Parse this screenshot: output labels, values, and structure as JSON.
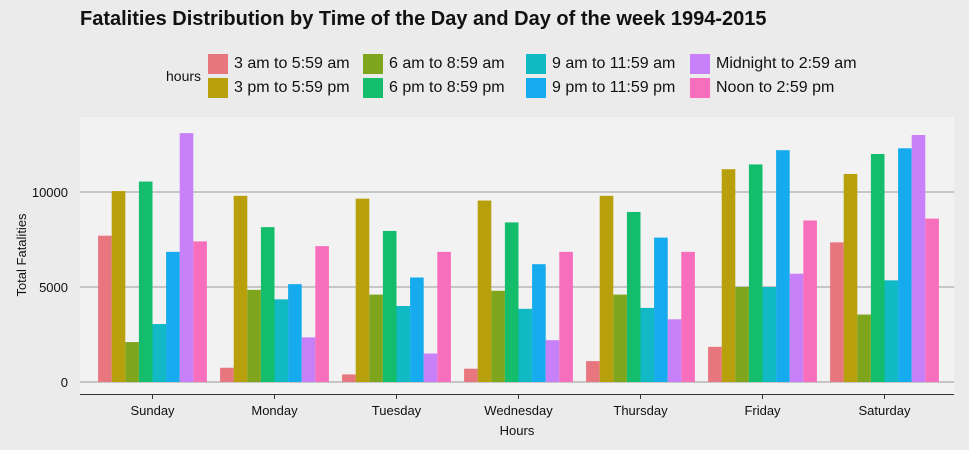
{
  "chart_data": {
    "type": "bar",
    "title": "Fatalities Distribution by Time of the Day and Day of the week 1994-2015",
    "xlabel": "Hours",
    "ylabel": "Total Fatalities",
    "legend_title": "hours",
    "legend_position": "top",
    "grid": true,
    "ylim": [
      0,
      13500
    ],
    "yticks": [
      0,
      5000,
      10000
    ],
    "categories": [
      "Sunday",
      "Monday",
      "Tuesday",
      "Wednesday",
      "Thursday",
      "Friday",
      "Saturday"
    ],
    "series": [
      {
        "name": "3 am to 5:59 am",
        "color": "#e8767e",
        "values": [
          7700,
          750,
          400,
          700,
          1100,
          1850,
          7350
        ]
      },
      {
        "name": "3 pm to 5:59 pm",
        "color": "#b8a00c",
        "values": [
          10050,
          9800,
          9650,
          9550,
          9800,
          11200,
          10950
        ]
      },
      {
        "name": "6 am to 8:59 am",
        "color": "#7ea51b",
        "values": [
          2100,
          4850,
          4600,
          4800,
          4600,
          5000,
          3550
        ]
      },
      {
        "name": "6 pm to 8:59 pm",
        "color": "#13bd6c",
        "values": [
          10550,
          8150,
          7950,
          8400,
          8950,
          11450,
          12000
        ]
      },
      {
        "name": "9 am to 11:59 am",
        "color": "#10b9c3",
        "values": [
          3050,
          4350,
          4000,
          3850,
          3900,
          5000,
          5350
        ]
      },
      {
        "name": "9 pm to 11:59 pm",
        "color": "#15abee",
        "values": [
          6850,
          5150,
          5500,
          6200,
          7600,
          12200,
          12300
        ]
      },
      {
        "name": "Midnight to 2:59 am",
        "color": "#c880f8",
        "values": [
          13100,
          2350,
          1500,
          2200,
          3300,
          5700,
          13000
        ]
      },
      {
        "name": "Noon to 2:59 pm",
        "color": "#f76ebc",
        "values": [
          7400,
          7150,
          6850,
          6850,
          6850,
          8500,
          8600
        ]
      }
    ]
  }
}
